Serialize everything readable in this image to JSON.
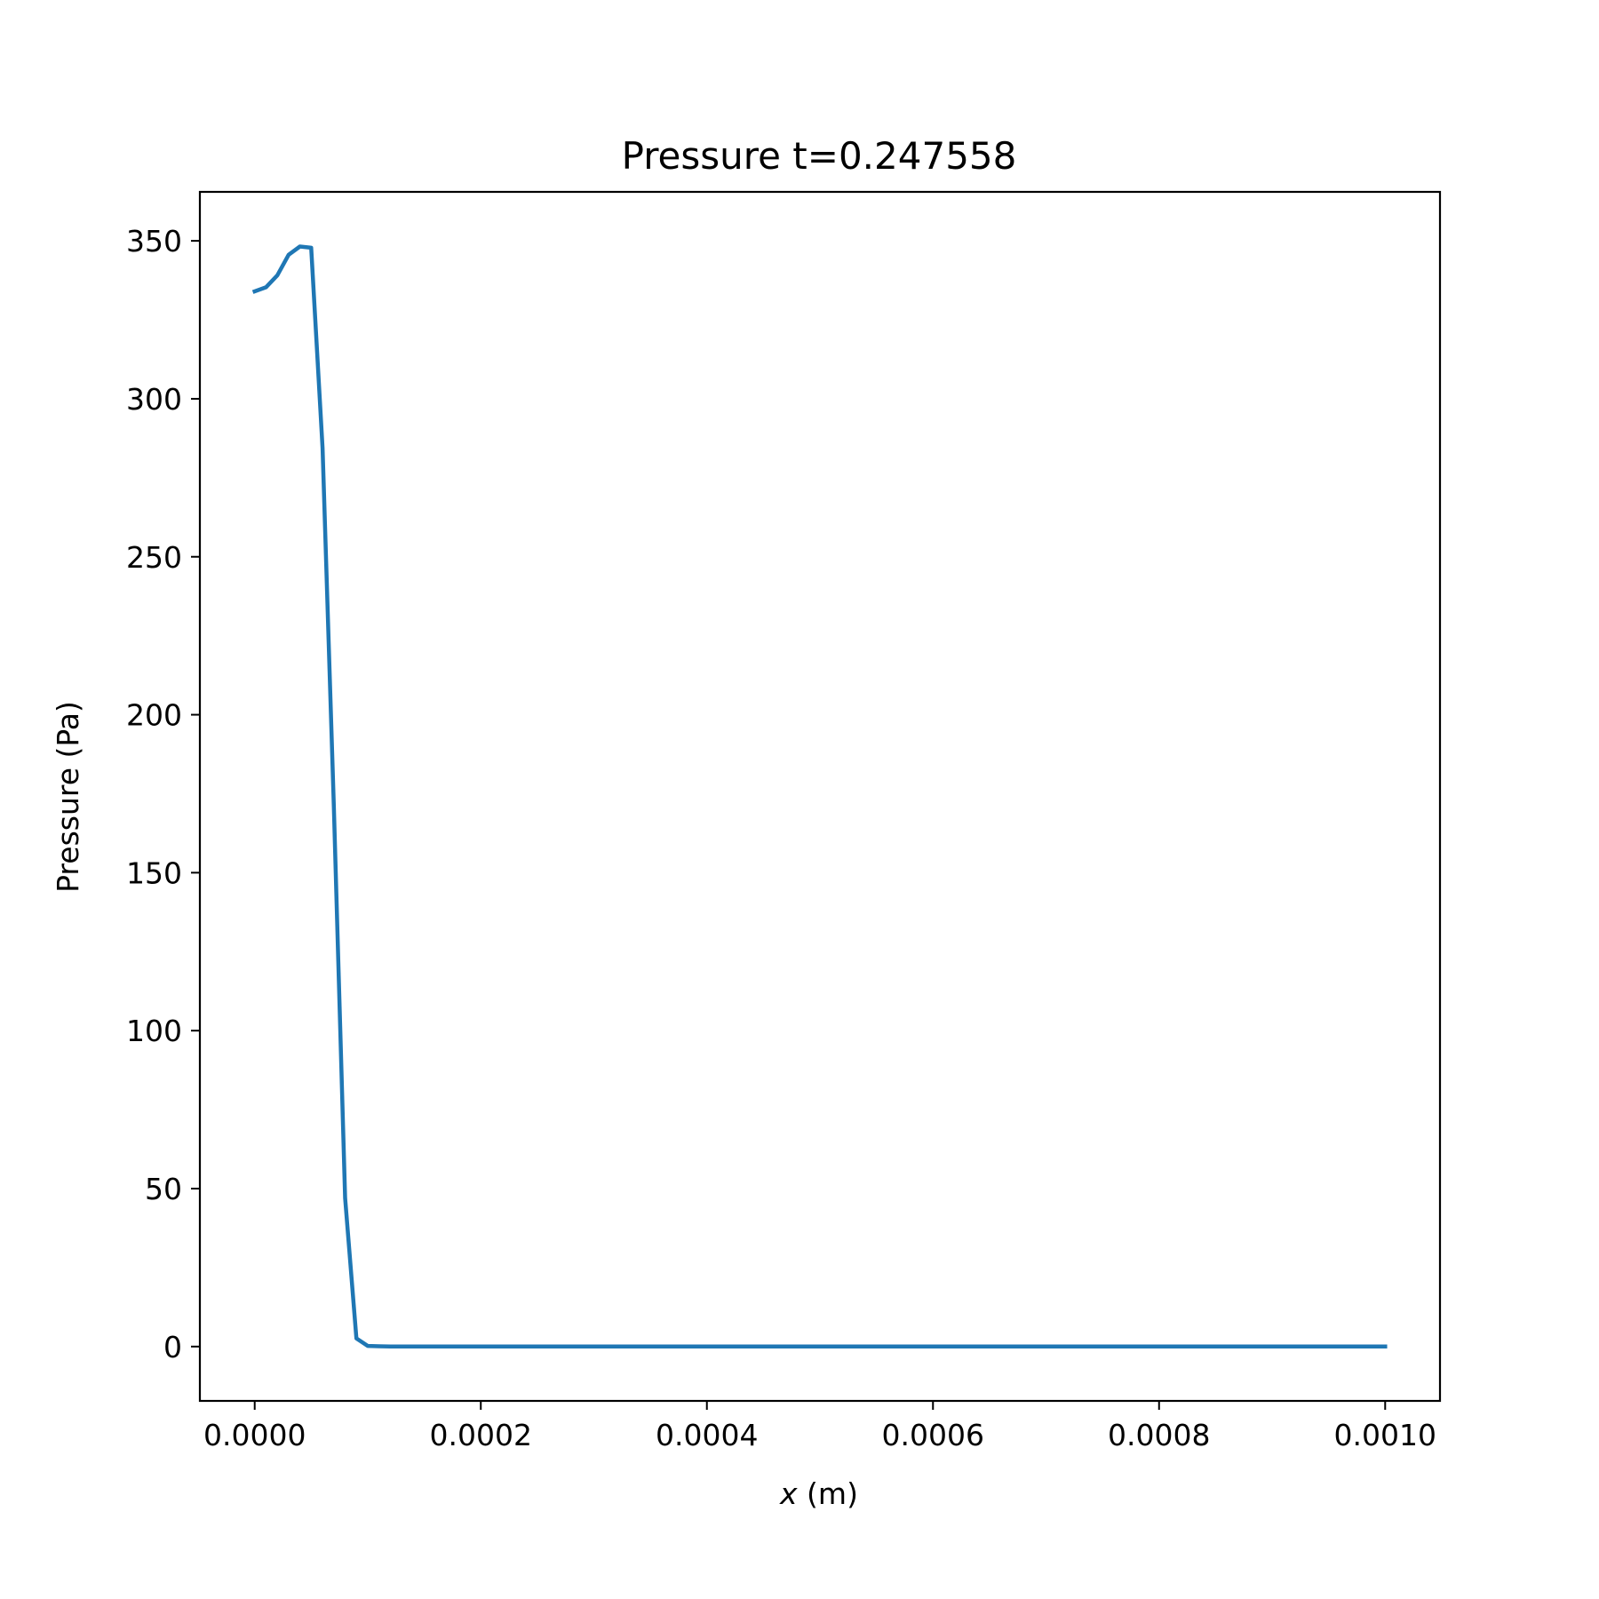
{
  "chart_data": {
    "type": "line",
    "title": "Pressure t=0.247558",
    "xlabel_var": "x",
    "xlabel_unit": " (m)",
    "ylabel": "Pressure (Pa)",
    "xlim": [
      -4.85e-05,
      0.0010485
    ],
    "ylim": [
      -17.2,
      365.5
    ],
    "xticks": [
      {
        "value": 0.0,
        "label": "0.0000"
      },
      {
        "value": 0.0002,
        "label": "0.0002"
      },
      {
        "value": 0.0004,
        "label": "0.0004"
      },
      {
        "value": 0.0006,
        "label": "0.0006"
      },
      {
        "value": 0.0008,
        "label": "0.0008"
      },
      {
        "value": 0.001,
        "label": "0.0010"
      }
    ],
    "yticks": [
      {
        "value": 0,
        "label": "0"
      },
      {
        "value": 50,
        "label": "50"
      },
      {
        "value": 100,
        "label": "100"
      },
      {
        "value": 150,
        "label": "150"
      },
      {
        "value": 200,
        "label": "200"
      },
      {
        "value": 250,
        "label": "250"
      },
      {
        "value": 300,
        "label": "300"
      },
      {
        "value": 350,
        "label": "350"
      }
    ],
    "grid": false,
    "series": [
      {
        "name": "pressure",
        "color": "#1f77b4",
        "x": [
          0.0,
          1e-05,
          2e-05,
          3e-05,
          4e-05,
          5e-05,
          6e-05,
          7e-05,
          8e-05,
          9e-05,
          0.0001,
          0.00011,
          0.00012,
          0.0002,
          0.0003,
          0.0004,
          0.0005,
          0.0006,
          0.0007,
          0.0008,
          0.0009,
          0.001
        ],
        "y": [
          334.0,
          335.3,
          339.1,
          345.6,
          348.2,
          347.8,
          284.5,
          171.0,
          47.0,
          2.6,
          0.2,
          0.1,
          0.0,
          0.0,
          0.0,
          0.0,
          0.0,
          0.0,
          0.0,
          0.0,
          0.0,
          0.0
        ]
      }
    ]
  }
}
